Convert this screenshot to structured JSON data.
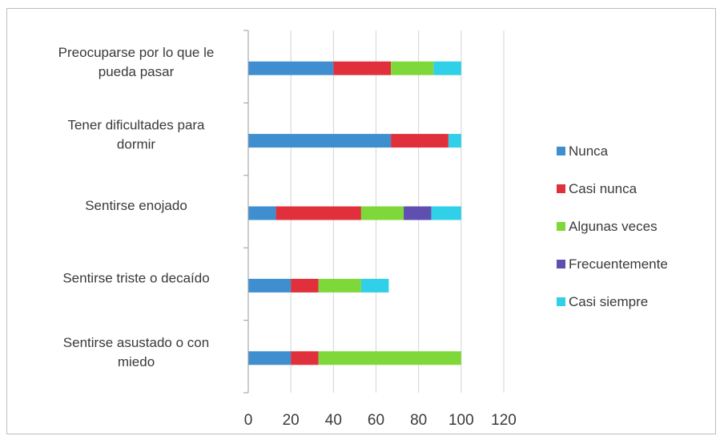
{
  "chart_data": {
    "type": "bar",
    "orientation": "horizontal",
    "stacked": true,
    "categories": [
      [
        "Preocuparse por lo que le",
        "pueda pasar"
      ],
      [
        "Tener dificultades para",
        "dormir"
      ],
      [
        "Sentirse enojado"
      ],
      [
        "Sentirse triste o decaído"
      ],
      [
        "Sentirse asustado o con",
        "miedo"
      ]
    ],
    "series": [
      {
        "name": "Nunca",
        "color": "#3f8fd0",
        "values": [
          40,
          67,
          13,
          20,
          20
        ]
      },
      {
        "name": "Casi nunca",
        "color": "#e0303c",
        "values": [
          27,
          27,
          40,
          13,
          13
        ]
      },
      {
        "name": "Algunas veces",
        "color": "#7fd83a",
        "values": [
          20,
          0,
          20,
          20,
          67
        ]
      },
      {
        "name": "Frecuentemente",
        "color": "#5f4fb0",
        "values": [
          0,
          0,
          13,
          0,
          0
        ]
      },
      {
        "name": "Casi siempre",
        "color": "#2fd0e8",
        "values": [
          13,
          6,
          14,
          13,
          0
        ]
      }
    ],
    "x_ticks": [
      "0",
      "20",
      "40",
      "60",
      "80",
      "100",
      "120"
    ],
    "xlim": [
      0,
      120
    ],
    "grid": true,
    "legend_position": "right",
    "title": "",
    "xlabel": "",
    "ylabel": ""
  }
}
